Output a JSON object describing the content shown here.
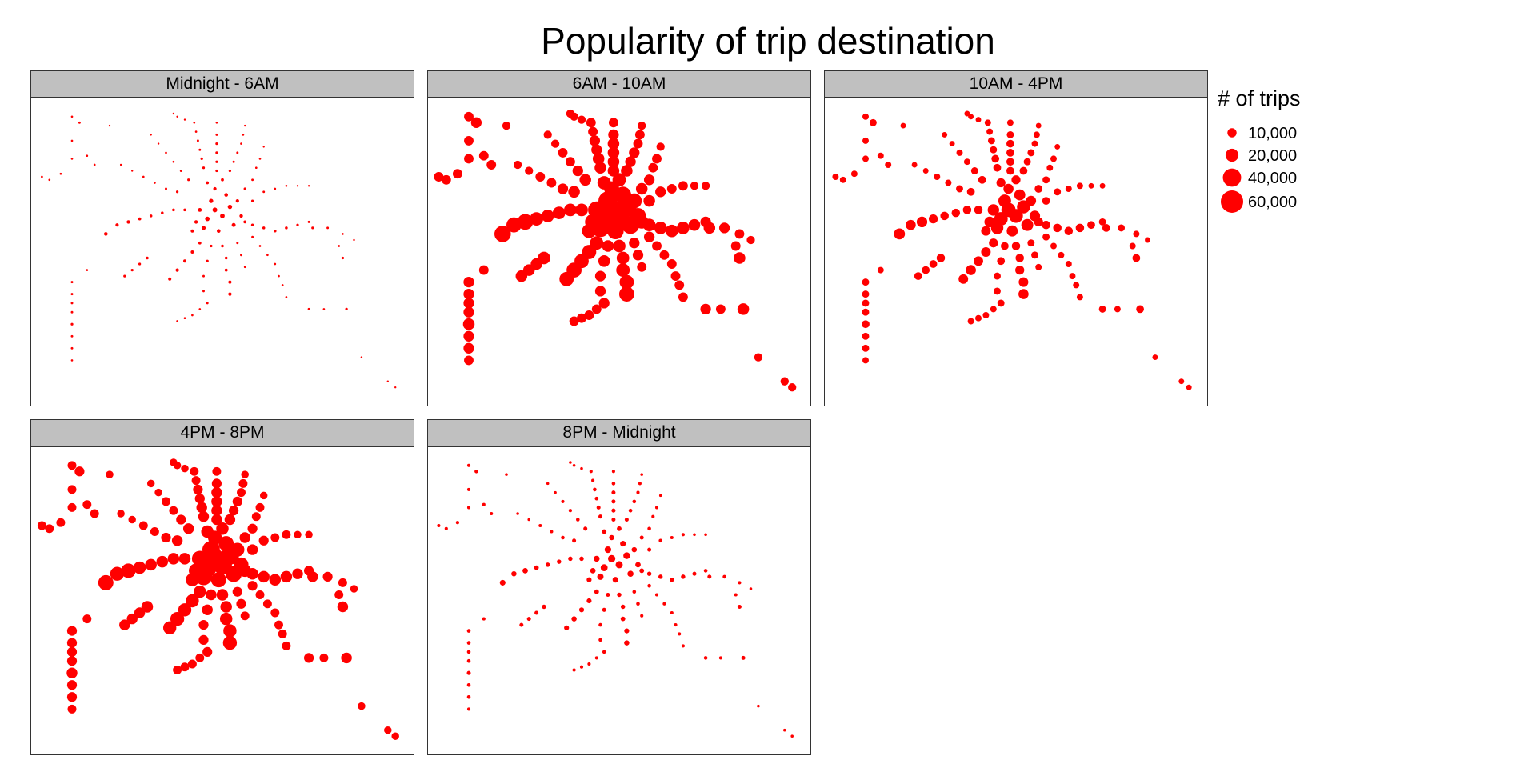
{
  "chart_data": {
    "type": "scatter",
    "title": "Popularity of trip destination",
    "facets": [
      "Midnight - 6AM",
      "6AM - 10AM",
      "10AM - 4PM",
      "4PM - 8PM",
      "8PM - Midnight"
    ],
    "legend": {
      "title": "# of trips",
      "position": "right",
      "entries": [
        {
          "label": "10,000",
          "value": 10000
        },
        {
          "label": "20,000",
          "value": 20000
        },
        {
          "label": "40,000",
          "value": 40000
        },
        {
          "label": "60,000",
          "value": 60000
        }
      ]
    },
    "size_range": [
      0,
      60000
    ],
    "color": "#ff0000",
    "xlim": [
      0,
      100
    ],
    "ylim": [
      0,
      100
    ],
    "facet_multipliers": [
      0.05,
      1.0,
      0.45,
      0.85,
      0.12
    ],
    "stations": [
      [
        48,
        64,
        1.0
      ],
      [
        50,
        62,
        0.95
      ],
      [
        46,
        61,
        0.9
      ],
      [
        52,
        65,
        0.85
      ],
      [
        47,
        67,
        0.8
      ],
      [
        45,
        58,
        0.75
      ],
      [
        53,
        59,
        0.7
      ],
      [
        44,
        64,
        0.65
      ],
      [
        51,
        69,
        0.6
      ],
      [
        49,
        57,
        0.6
      ],
      [
        55,
        62,
        0.55
      ],
      [
        43,
        60,
        0.55
      ],
      [
        54,
        67,
        0.5
      ],
      [
        48,
        71,
        0.5
      ],
      [
        42,
        57,
        0.45
      ],
      [
        56,
        60,
        0.4
      ],
      [
        50,
        74,
        0.4
      ],
      [
        46,
        73,
        0.4
      ],
      [
        48.5,
        77,
        0.3
      ],
      [
        48.5,
        80,
        0.3
      ],
      [
        48.5,
        83,
        0.3
      ],
      [
        48.5,
        86,
        0.3
      ],
      [
        48.5,
        89,
        0.25
      ],
      [
        48.5,
        93,
        0.2
      ],
      [
        45,
        78,
        0.3
      ],
      [
        44.5,
        81,
        0.3
      ],
      [
        44,
        84,
        0.25
      ],
      [
        43.5,
        87,
        0.25
      ],
      [
        43,
        90,
        0.2
      ],
      [
        42.5,
        93,
        0.2
      ],
      [
        52,
        77,
        0.3
      ],
      [
        53,
        80,
        0.25
      ],
      [
        54,
        83,
        0.25
      ],
      [
        55,
        86,
        0.2
      ],
      [
        55.5,
        89,
        0.2
      ],
      [
        56,
        92,
        0.15
      ],
      [
        41,
        74,
        0.3
      ],
      [
        39,
        77,
        0.25
      ],
      [
        37,
        80,
        0.2
      ],
      [
        35,
        83,
        0.2
      ],
      [
        33,
        86,
        0.15
      ],
      [
        31,
        89,
        0.15
      ],
      [
        56,
        71,
        0.3
      ],
      [
        58,
        74,
        0.25
      ],
      [
        59,
        78,
        0.2
      ],
      [
        60,
        81,
        0.2
      ],
      [
        61,
        85,
        0.15
      ],
      [
        58,
        67,
        0.3
      ],
      [
        61,
        70,
        0.25
      ],
      [
        64,
        71,
        0.2
      ],
      [
        67,
        72,
        0.2
      ],
      [
        70,
        72,
        0.15
      ],
      [
        73,
        72,
        0.15
      ],
      [
        38,
        70,
        0.3
      ],
      [
        35,
        71,
        0.25
      ],
      [
        32,
        73,
        0.2
      ],
      [
        29,
        75,
        0.2
      ],
      [
        26,
        77,
        0.15
      ],
      [
        23,
        79,
        0.15
      ],
      [
        40,
        64,
        0.35
      ],
      [
        37,
        64,
        0.35
      ],
      [
        34,
        63,
        0.35
      ],
      [
        31,
        62,
        0.35
      ],
      [
        28,
        61,
        0.4
      ],
      [
        25,
        60,
        0.55
      ],
      [
        22,
        59,
        0.5
      ],
      [
        19,
        56,
        0.6
      ],
      [
        58,
        59,
        0.35
      ],
      [
        61,
        58,
        0.35
      ],
      [
        64,
        57,
        0.35
      ],
      [
        67,
        58,
        0.35
      ],
      [
        70,
        59,
        0.3
      ],
      [
        73,
        60,
        0.25
      ],
      [
        44,
        53,
        0.4
      ],
      [
        42,
        50,
        0.45
      ],
      [
        40,
        47,
        0.45
      ],
      [
        38,
        44,
        0.5
      ],
      [
        36,
        41,
        0.45
      ],
      [
        30,
        48,
        0.35
      ],
      [
        28,
        46,
        0.3
      ],
      [
        26,
        44,
        0.3
      ],
      [
        24,
        42,
        0.3
      ],
      [
        47,
        52,
        0.3
      ],
      [
        46,
        47,
        0.3
      ],
      [
        45,
        42,
        0.25
      ],
      [
        45,
        37,
        0.25
      ],
      [
        46,
        33,
        0.25
      ],
      [
        44,
        31,
        0.2
      ],
      [
        42,
        29,
        0.2
      ],
      [
        40,
        28,
        0.2
      ],
      [
        38,
        27,
        0.2
      ],
      [
        50,
        52,
        0.35
      ],
      [
        51,
        48,
        0.35
      ],
      [
        51,
        44,
        0.4
      ],
      [
        52,
        40,
        0.45
      ],
      [
        52,
        36,
        0.5
      ],
      [
        54,
        53,
        0.25
      ],
      [
        55,
        49,
        0.25
      ],
      [
        56,
        45,
        0.2
      ],
      [
        58,
        55,
        0.25
      ],
      [
        60,
        52,
        0.2
      ],
      [
        62,
        49,
        0.2
      ],
      [
        64,
        46,
        0.2
      ],
      [
        65,
        42,
        0.2
      ],
      [
        66,
        39,
        0.2
      ],
      [
        67,
        35,
        0.2
      ],
      [
        73,
        31,
        0.25
      ],
      [
        77,
        31,
        0.2
      ],
      [
        83,
        31,
        0.3
      ],
      [
        74,
        58,
        0.3
      ],
      [
        78,
        58,
        0.25
      ],
      [
        82,
        56,
        0.2
      ],
      [
        85,
        54,
        0.15
      ],
      [
        81,
        52,
        0.2
      ],
      [
        82,
        48,
        0.3
      ],
      [
        87,
        15,
        0.15
      ],
      [
        94,
        7,
        0.15
      ],
      [
        96,
        5,
        0.15
      ],
      [
        10,
        36,
        0.25
      ],
      [
        10,
        33,
        0.25
      ],
      [
        10,
        30,
        0.25
      ],
      [
        10,
        26,
        0.3
      ],
      [
        10,
        22,
        0.25
      ],
      [
        10,
        18,
        0.25
      ],
      [
        10,
        14,
        0.2
      ],
      [
        10,
        40,
        0.25
      ],
      [
        14,
        44,
        0.2
      ],
      [
        10,
        87,
        0.2
      ],
      [
        12,
        93,
        0.25
      ],
      [
        10,
        95,
        0.2
      ],
      [
        10,
        81,
        0.2
      ],
      [
        14,
        82,
        0.2
      ],
      [
        16,
        79,
        0.2
      ],
      [
        2,
        75,
        0.2
      ],
      [
        4,
        74,
        0.2
      ],
      [
        7,
        76,
        0.2
      ],
      [
        20,
        92,
        0.15
      ],
      [
        38,
        95,
        0.15
      ],
      [
        40,
        94,
        0.15
      ],
      [
        37,
        96,
        0.15
      ]
    ]
  }
}
